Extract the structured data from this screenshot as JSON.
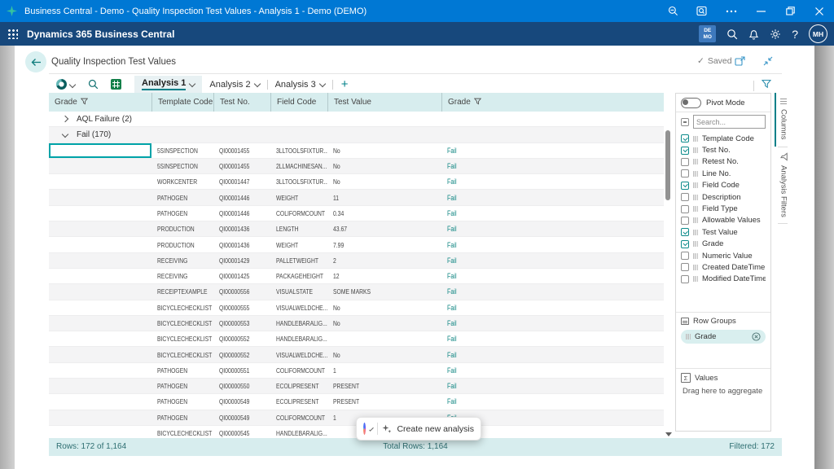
{
  "window": {
    "title": "Business Central - Demo - Quality Inspection Test Values - Analysis 1 - Demo (DEMO)",
    "controls": [
      "zoom-out",
      "search-in-window",
      "more",
      "minimize",
      "restore",
      "close"
    ]
  },
  "appbar": {
    "product": "Dynamics 365 Business Central",
    "badge_lines": [
      "DE",
      "MO"
    ],
    "icons": [
      "environment-badge",
      "search",
      "notifications-bell",
      "settings-gear",
      "help",
      "avatar"
    ],
    "avatar_initials": "MH"
  },
  "page": {
    "title": "Quality Inspection Test Values",
    "save_status": "Saved",
    "header_icons": [
      "open-in-new-window",
      "collapse"
    ]
  },
  "toolbar": {
    "icons": [
      "analysis-view-donut",
      "search",
      "open-in-excel",
      "filter-funnel"
    ],
    "tabs": [
      {
        "label": "Analysis 1",
        "active": true
      },
      {
        "label": "Analysis 2",
        "active": false
      },
      {
        "label": "Analysis 3",
        "active": false
      }
    ],
    "new_tab_label": "+"
  },
  "table": {
    "headers": [
      {
        "label": "Grade",
        "filter": true
      },
      {
        "label": "Template Code",
        "filter": false
      },
      {
        "label": "Test No.",
        "filter": false
      },
      {
        "label": "Field Code",
        "filter": false
      },
      {
        "label": "Test Value",
        "filter": false
      },
      {
        "label": "Grade",
        "filter": true
      }
    ],
    "rows": [
      {
        "type": "group",
        "label": "AQL Failure (2)",
        "expanded": false
      },
      {
        "type": "group",
        "label": "Fail (170)",
        "expanded": true
      },
      {
        "type": "data",
        "selected": true,
        "template": "5SINSPECTION",
        "test_no": "QI00001455",
        "field_code": "3LLTOOLSFIXTUR...",
        "test_value": "No",
        "grade": "Fail"
      },
      {
        "type": "data",
        "template": "5SINSPECTION",
        "test_no": "QI00001455",
        "field_code": "2LLMACHINESAN...",
        "test_value": "No",
        "grade": "Fail"
      },
      {
        "type": "data",
        "template": "WORKCENTER",
        "test_no": "QI00001447",
        "field_code": "3LLTOOLSFIXTUR...",
        "test_value": "No",
        "grade": "Fail"
      },
      {
        "type": "data",
        "template": "PATHOGEN",
        "test_no": "QI00001446",
        "field_code": "WEIGHT",
        "test_value": "11",
        "grade": "Fail"
      },
      {
        "type": "data",
        "template": "PATHOGEN",
        "test_no": "QI00001446",
        "field_code": "COLIFORMCOUNT",
        "test_value": "0.34",
        "grade": "Fail"
      },
      {
        "type": "data",
        "template": "PRODUCTION",
        "test_no": "QI00001436",
        "field_code": "LENGTH",
        "test_value": "43.67",
        "grade": "Fail"
      },
      {
        "type": "data",
        "template": "PRODUCTION",
        "test_no": "QI00001436",
        "field_code": "WEIGHT",
        "test_value": "7.99",
        "grade": "Fail"
      },
      {
        "type": "data",
        "template": "RECEIVING",
        "test_no": "QI00001429",
        "field_code": "PALLETWEIGHT",
        "test_value": "2",
        "grade": "Fail"
      },
      {
        "type": "data",
        "template": "RECEIVING",
        "test_no": "QI00001425",
        "field_code": "PACKAGEHEIGHT",
        "test_value": "12",
        "grade": "Fail"
      },
      {
        "type": "data",
        "template": "RECEIPTEXAMPLE",
        "test_no": "QI00000556",
        "field_code": "VISUALSTATE",
        "test_value": "SOME MARKS",
        "grade": "Fail"
      },
      {
        "type": "data",
        "template": "BICYCLECHECKLIST",
        "test_no": "QI00000555",
        "field_code": "VISUALWELDCHE...",
        "test_value": "No",
        "grade": "Fail"
      },
      {
        "type": "data",
        "template": "BICYCLECHECKLIST",
        "test_no": "QI00000553",
        "field_code": "HANDLEBARALIG...",
        "test_value": "No",
        "grade": "Fail"
      },
      {
        "type": "data",
        "template": "BICYCLECHECKLIST",
        "test_no": "QI00000552",
        "field_code": "HANDLEBARALIG...",
        "test_value": "",
        "grade": "Fail"
      },
      {
        "type": "data",
        "template": "BICYCLECHECKLIST",
        "test_no": "QI00000552",
        "field_code": "VISUALWELDCHE...",
        "test_value": "No",
        "grade": "Fail"
      },
      {
        "type": "data",
        "template": "PATHOGEN",
        "test_no": "QI00000551",
        "field_code": "COLIFORMCOUNT",
        "test_value": "1",
        "grade": "Fail"
      },
      {
        "type": "data",
        "template": "PATHOGEN",
        "test_no": "QI00000550",
        "field_code": "ECOLIPRESENT",
        "test_value": "PRESENT",
        "grade": "Fail"
      },
      {
        "type": "data",
        "template": "PATHOGEN",
        "test_no": "QI00000549",
        "field_code": "ECOLIPRESENT",
        "test_value": "PRESENT",
        "grade": "Fail"
      },
      {
        "type": "data",
        "template": "PATHOGEN",
        "test_no": "QI00000549",
        "field_code": "COLIFORMCOUNT",
        "test_value": "1",
        "grade": "Fail"
      },
      {
        "type": "data",
        "template": "BICYCLECHECKLIST",
        "test_no": "QI00000545",
        "field_code": "HANDLEBARALIG...",
        "test_value": "",
        "grade": ""
      }
    ]
  },
  "panel": {
    "pivot_mode_label": "Pivot Mode",
    "search_placeholder": "Search...",
    "fields": [
      {
        "label": "Template Code",
        "checked": true
      },
      {
        "label": "Test No.",
        "checked": true
      },
      {
        "label": "Retest No.",
        "checked": false
      },
      {
        "label": "Line No.",
        "checked": false
      },
      {
        "label": "Field Code",
        "checked": true
      },
      {
        "label": "Description",
        "checked": false
      },
      {
        "label": "Field Type",
        "checked": false
      },
      {
        "label": "Allowable Values",
        "checked": false
      },
      {
        "label": "Test Value",
        "checked": true
      },
      {
        "label": "Grade",
        "checked": true
      },
      {
        "label": "Numeric Value",
        "checked": false
      },
      {
        "label": "Created DateTime",
        "checked": false
      },
      {
        "label": "Modified DateTime",
        "checked": false
      }
    ],
    "row_groups": {
      "title": "Row Groups",
      "items": [
        "Grade"
      ]
    },
    "values": {
      "title": "Values",
      "hint": "Drag here to aggregate"
    }
  },
  "side_tabs": [
    {
      "label": "Columns",
      "active": true
    },
    {
      "label": "Analysis Filters",
      "active": false
    }
  ],
  "status_bar": {
    "left": "Rows: 172 of 1,164",
    "center": "Total Rows: 1,164",
    "right": "Filtered: 172"
  },
  "copilot_bar": {
    "action": "Create new analysis",
    "icons": [
      "copilot-logo",
      "chevron-down",
      "sparkle"
    ]
  },
  "colors": {
    "titlebar": "#0078d4",
    "appbar": "#17487c",
    "accent_teal": "#008089",
    "table_header_bg": "#d7edee",
    "status_bar_bg": "#d7edee",
    "fail_text": "#0f8682",
    "selected_cell_border": "#00a3a8"
  }
}
